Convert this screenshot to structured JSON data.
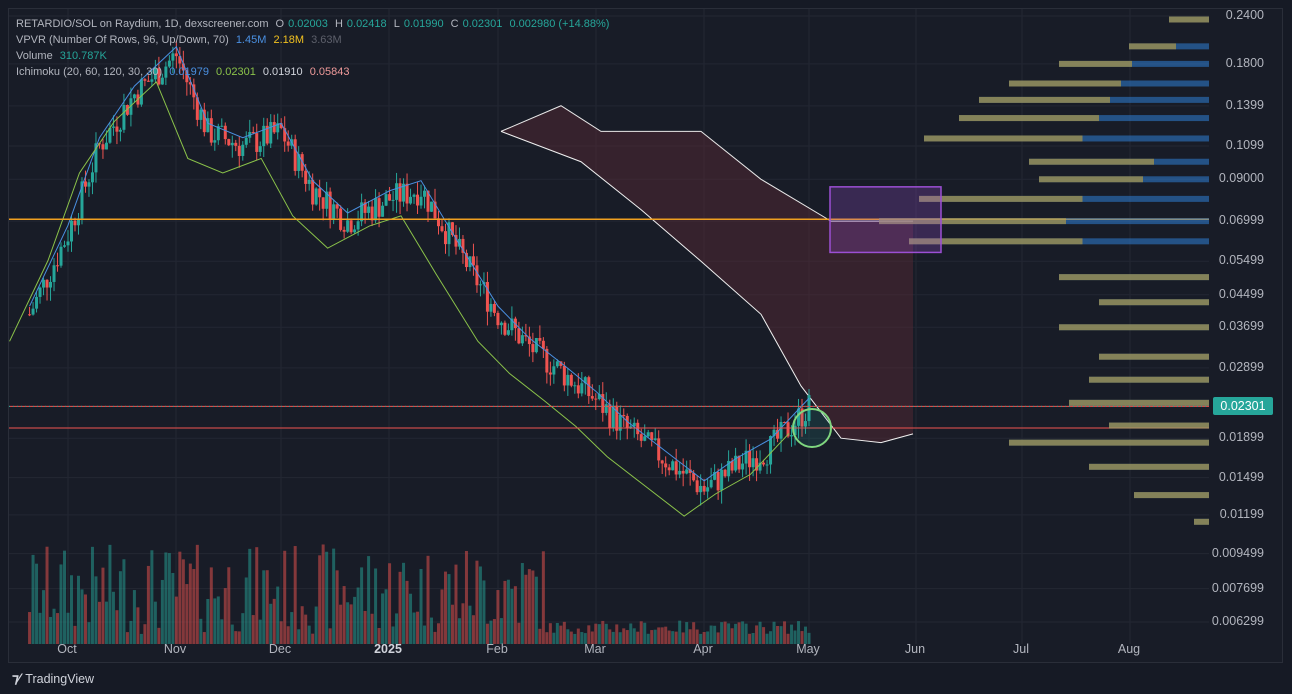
{
  "legend": {
    "title": "RETARDIO/SOL on Raydium, 1D, dexscreener.com",
    "o_label": "O",
    "o_value": "0.02003",
    "h_label": "H",
    "h_value": "0.02418",
    "l_label": "L",
    "l_value": "0.01990",
    "c_label": "C",
    "c_value": "0.02301",
    "change": "0.002980 (+14.88%)",
    "vpvr_label": "VPVR (Number Of Rows, 96, Up/Down, 70)",
    "vpvr_up": "1.45M",
    "vpvr_down": "2.18M",
    "vpvr_total": "3.63M",
    "volume_label": "Volume",
    "volume_value": "310.787K",
    "ichimoku_label": "Ichimoku (20, 60, 120, 30, 30)",
    "ich_conv": "0.01979",
    "ich_base": "0.02301",
    "ich_lag": "0.01910",
    "ich_span": "0.05843"
  },
  "price_tag": "0.02301",
  "brand": "TradingView",
  "chart_data": {
    "type": "candlestick",
    "y_scale": "log",
    "ylim": [
      0.0058,
      0.245
    ],
    "y_ticks": [
      "0.2400",
      "0.1800",
      "0.1399",
      "0.1099",
      "0.09000",
      "0.06999",
      "0.05499",
      "0.04499",
      "0.03699",
      "0.02899",
      "0.01899",
      "0.01499",
      "0.01199",
      "0.009499",
      "0.007699",
      "0.006299"
    ],
    "x_ticks": [
      "Oct",
      "Nov",
      "Dec",
      "2025",
      "Feb",
      "Mar",
      "Apr",
      "May",
      "Jun",
      "Jul",
      "Aug"
    ],
    "close_series": {
      "dates": [
        "2024-09-20",
        "2024-10-01",
        "2024-10-10",
        "2024-10-20",
        "2024-11-01",
        "2024-11-10",
        "2024-11-20",
        "2024-12-01",
        "2024-12-10",
        "2024-12-20",
        "2025-01-01",
        "2025-01-10",
        "2025-01-20",
        "2025-02-01",
        "2025-02-10",
        "2025-02-20",
        "2025-03-01",
        "2025-03-10",
        "2025-03-20",
        "2025-04-01",
        "2025-04-10",
        "2025-04-20",
        "2025-05-01"
      ],
      "values": [
        0.04,
        0.065,
        0.11,
        0.15,
        0.19,
        0.12,
        0.11,
        0.12,
        0.085,
        0.07,
        0.08,
        0.085,
        0.06,
        0.04,
        0.033,
        0.028,
        0.024,
        0.02,
        0.017,
        0.014,
        0.016,
        0.018,
        0.023
      ]
    },
    "horizontal_lines": [
      0.0708,
      0.023,
      0.0202
    ],
    "highlight_box": {
      "price_low": 0.058,
      "price_high": 0.086,
      "label": ""
    }
  },
  "colors": {
    "up": "#26a69a",
    "down": "#ef5350",
    "background": "#181c27",
    "vpvr_up": "#2f7fd6",
    "vpvr_down": "#d4a934",
    "cloud": "#5b2a35",
    "box": "#9c4fd4"
  }
}
